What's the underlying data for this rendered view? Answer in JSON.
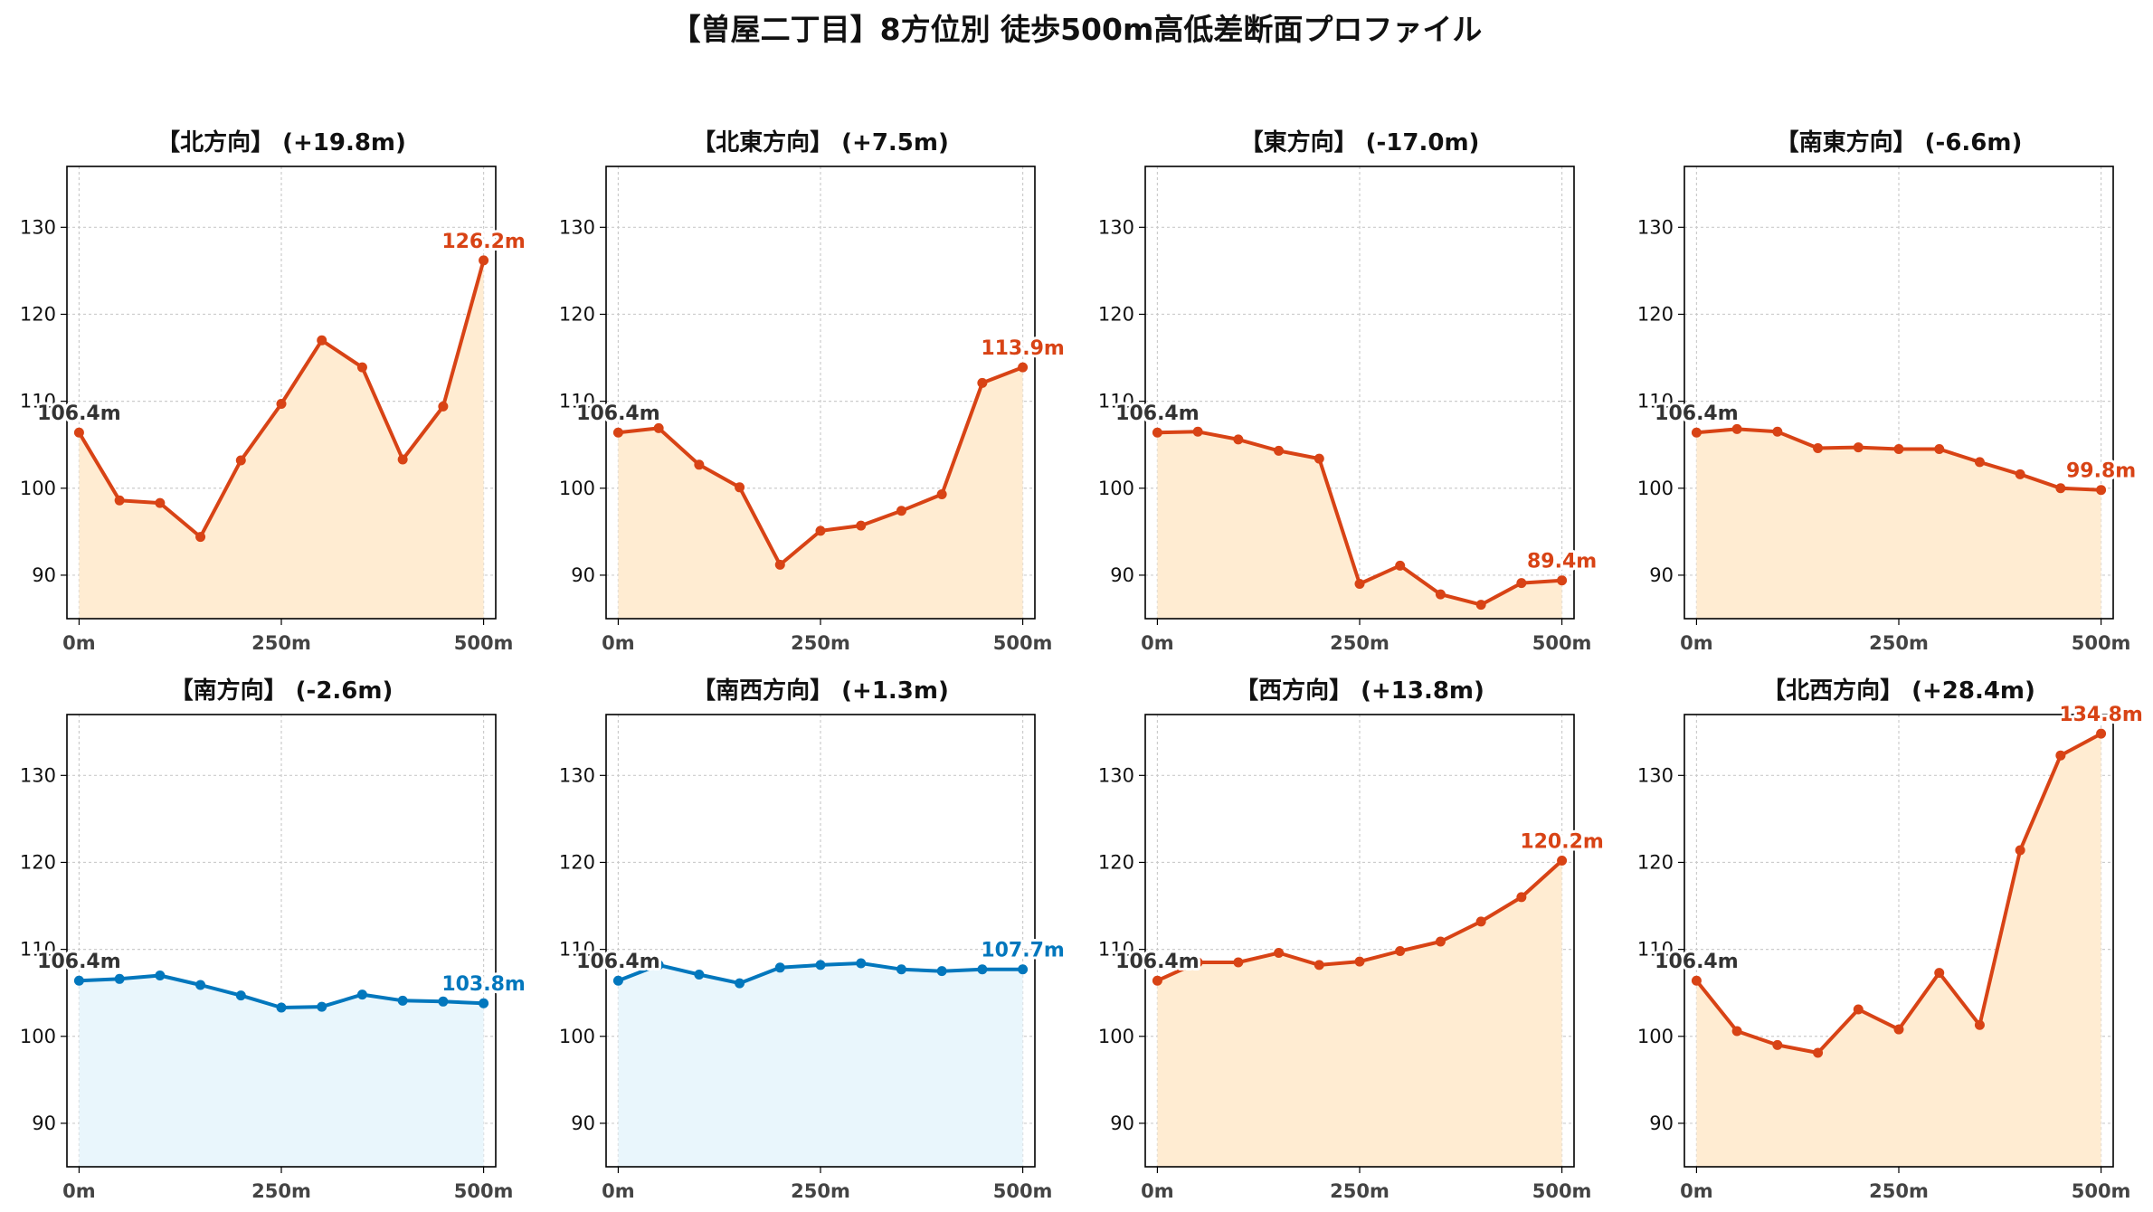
{
  "suptitle": "【曽屋二丁目】8方位別 徒歩500m高低差断面プロファイル",
  "colors": {
    "up_line": "#d84315",
    "up_fill": "#ffecd2",
    "down_line": "#0277bd",
    "down_fill": "#e9f6fc",
    "start_label": "#333333",
    "grid": "#cccccc"
  },
  "chart_data": [
    {
      "type": "area",
      "title": "【北方向】 (+19.8m)",
      "theme": "up",
      "x": [
        0,
        50,
        100,
        150,
        200,
        250,
        300,
        350,
        400,
        450,
        500
      ],
      "values": [
        106.4,
        98.6,
        98.3,
        94.4,
        103.2,
        109.7,
        117.0,
        113.9,
        103.3,
        109.4,
        126.2
      ],
      "start_label": "106.4m",
      "end_label": "126.2m",
      "xticks": [
        "0m",
        "250m",
        "500m"
      ],
      "yticks": [
        "90",
        "100",
        "110",
        "120",
        "130"
      ],
      "xlim": [
        -15,
        515
      ],
      "ylim": [
        85,
        137
      ],
      "grid": true
    },
    {
      "type": "area",
      "title": "【北東方向】 (+7.5m)",
      "theme": "up",
      "x": [
        0,
        50,
        100,
        150,
        200,
        250,
        300,
        350,
        400,
        450,
        500
      ],
      "values": [
        106.4,
        106.9,
        102.7,
        100.1,
        91.2,
        95.1,
        95.7,
        97.4,
        99.3,
        112.1,
        113.9
      ],
      "start_label": "106.4m",
      "end_label": "113.9m",
      "xticks": [
        "0m",
        "250m",
        "500m"
      ],
      "yticks": [
        "90",
        "100",
        "110",
        "120",
        "130"
      ],
      "xlim": [
        -15,
        515
      ],
      "ylim": [
        85,
        137
      ],
      "grid": true
    },
    {
      "type": "area",
      "title": "【東方向】 (-17.0m)",
      "theme": "up",
      "x": [
        0,
        50,
        100,
        150,
        200,
        250,
        300,
        350,
        400,
        450,
        500
      ],
      "values": [
        106.4,
        106.5,
        105.6,
        104.3,
        103.4,
        89.0,
        91.1,
        87.8,
        86.6,
        89.1,
        89.4
      ],
      "start_label": "106.4m",
      "end_label": "89.4m",
      "xticks": [
        "0m",
        "250m",
        "500m"
      ],
      "yticks": [
        "90",
        "100",
        "110",
        "120",
        "130"
      ],
      "xlim": [
        -15,
        515
      ],
      "ylim": [
        85,
        137
      ],
      "grid": true
    },
    {
      "type": "area",
      "title": "【南東方向】 (-6.6m)",
      "theme": "up",
      "x": [
        0,
        50,
        100,
        150,
        200,
        250,
        300,
        350,
        400,
        450,
        500
      ],
      "values": [
        106.4,
        106.8,
        106.5,
        104.6,
        104.7,
        104.5,
        104.5,
        103.0,
        101.6,
        100.0,
        99.8
      ],
      "start_label": "106.4m",
      "end_label": "99.8m",
      "xticks": [
        "0m",
        "250m",
        "500m"
      ],
      "yticks": [
        "90",
        "100",
        "110",
        "120",
        "130"
      ],
      "xlim": [
        -15,
        515
      ],
      "ylim": [
        85,
        137
      ],
      "grid": true
    },
    {
      "type": "area",
      "title": "【南方向】 (-2.6m)",
      "theme": "down",
      "x": [
        0,
        50,
        100,
        150,
        200,
        250,
        300,
        350,
        400,
        450,
        500
      ],
      "values": [
        106.4,
        106.6,
        107.0,
        105.9,
        104.7,
        103.3,
        103.4,
        104.8,
        104.1,
        104.0,
        103.8
      ],
      "start_label": "106.4m",
      "end_label": "103.8m",
      "xticks": [
        "0m",
        "250m",
        "500m"
      ],
      "yticks": [
        "90",
        "100",
        "110",
        "120",
        "130"
      ],
      "xlim": [
        -15,
        515
      ],
      "ylim": [
        85,
        137
      ],
      "grid": true
    },
    {
      "type": "area",
      "title": "【南西方向】 (+1.3m)",
      "theme": "down",
      "x": [
        0,
        50,
        100,
        150,
        200,
        250,
        300,
        350,
        400,
        450,
        500
      ],
      "values": [
        106.4,
        108.2,
        107.1,
        106.1,
        107.9,
        108.2,
        108.4,
        107.7,
        107.5,
        107.7,
        107.7
      ],
      "start_label": "106.4m",
      "end_label": "107.7m",
      "xticks": [
        "0m",
        "250m",
        "500m"
      ],
      "yticks": [
        "90",
        "100",
        "110",
        "120",
        "130"
      ],
      "xlim": [
        -15,
        515
      ],
      "ylim": [
        85,
        137
      ],
      "grid": true
    },
    {
      "type": "area",
      "title": "【西方向】 (+13.8m)",
      "theme": "up",
      "x": [
        0,
        50,
        100,
        150,
        200,
        250,
        300,
        350,
        400,
        450,
        500
      ],
      "values": [
        106.4,
        108.5,
        108.5,
        109.6,
        108.2,
        108.6,
        109.8,
        110.9,
        113.2,
        116.0,
        120.2
      ],
      "start_label": "106.4m",
      "end_label": "120.2m",
      "xticks": [
        "0m",
        "250m",
        "500m"
      ],
      "yticks": [
        "90",
        "100",
        "110",
        "120",
        "130"
      ],
      "xlim": [
        -15,
        515
      ],
      "ylim": [
        85,
        137
      ],
      "grid": true
    },
    {
      "type": "area",
      "title": "【北西方向】 (+28.4m)",
      "theme": "up",
      "x": [
        0,
        50,
        100,
        150,
        200,
        250,
        300,
        350,
        400,
        450,
        500
      ],
      "values": [
        106.4,
        100.6,
        99.0,
        98.1,
        103.1,
        100.8,
        107.3,
        101.3,
        121.4,
        132.3,
        134.8
      ],
      "start_label": "106.4m",
      "end_label": "134.8m",
      "xticks": [
        "0m",
        "250m",
        "500m"
      ],
      "yticks": [
        "90",
        "100",
        "110",
        "120",
        "130"
      ],
      "xlim": [
        -15,
        515
      ],
      "ylim": [
        85,
        137
      ],
      "grid": true
    }
  ]
}
